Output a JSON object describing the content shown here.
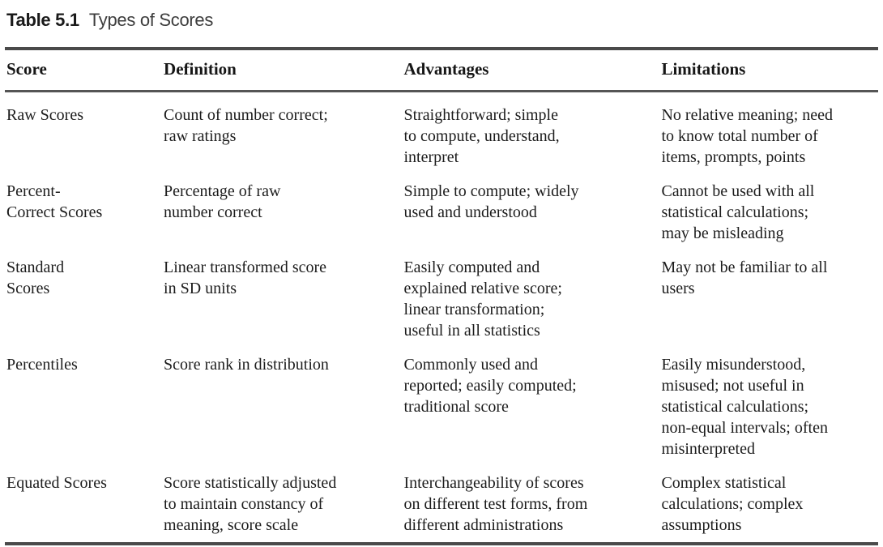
{
  "page": {
    "title_label": "Table 5.1",
    "title_caption": "Types of Scores"
  },
  "table": {
    "columns": [
      "Score",
      "Definition",
      "Advantages",
      "Limitations"
    ],
    "rows": [
      {
        "score": "Raw Scores",
        "definition": "Count of number correct;\nraw ratings",
        "advantages": "Straightforward; simple\nto compute, understand,\ninterpret",
        "limitations": "No relative meaning; need\nto know total number of\nitems, prompts, points"
      },
      {
        "score": "Percent-\nCorrect Scores",
        "definition": "Percentage of raw\nnumber correct",
        "advantages": "Simple to compute; widely\nused and understood",
        "limitations": "Cannot be used with all\nstatistical calculations;\nmay be misleading"
      },
      {
        "score": "Standard\nScores",
        "definition": "Linear transformed score\nin SD units",
        "advantages": "Easily computed and\nexplained relative score;\nlinear transformation;\nuseful in all statistics",
        "limitations": "May not be familiar to all\nusers"
      },
      {
        "score": "Percentiles",
        "definition": "Score rank in distribution",
        "advantages": "Commonly used and\nreported; easily computed;\ntraditional score",
        "limitations": "Easily misunderstood,\nmisused; not useful in\nstatistical calculations;\nnon-equal intervals; often\nmisinterpreted"
      },
      {
        "score": "Equated Scores",
        "definition": "Score statistically adjusted\nto maintain constancy of\nmeaning, score scale",
        "advantages": "Interchangeability of scores\non different test forms, from\ndifferent administrations",
        "limitations": "Complex statistical\ncalculations; complex\nassumptions"
      }
    ]
  },
  "colors": {
    "background": "#ffffff",
    "body_text": "#1c1c1c",
    "title_number": "#1a1a1a",
    "title_caption": "#3d3d3d",
    "rule_heavy": "#4a4a4a",
    "rule_header": "#555555"
  }
}
